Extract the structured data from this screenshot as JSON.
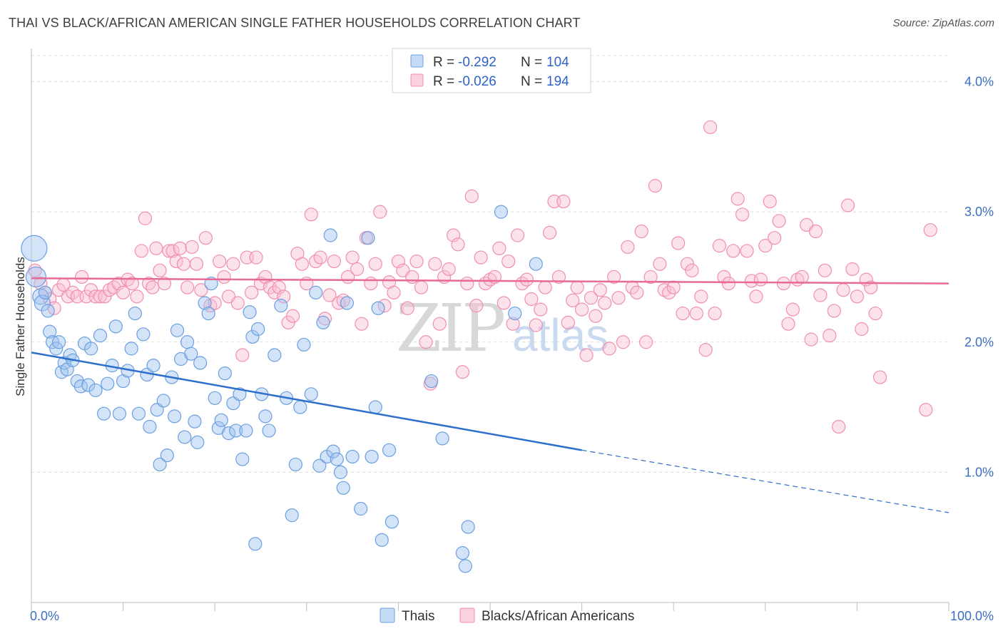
{
  "title": "THAI VS BLACK/AFRICAN AMERICAN SINGLE FATHER HOUSEHOLDS CORRELATION CHART",
  "source": "Source: ZipAtlas.com",
  "watermark": {
    "zip": "ZIP",
    "atlas": "atlas"
  },
  "colors": {
    "thai": "#6b9fe0",
    "thai_fill": "rgba(160,195,240,0.45)",
    "black": "#f08fb0",
    "black_fill": "rgba(248,190,210,0.45)",
    "thai_line": "#2e6fcd",
    "black_line": "#e86a96"
  },
  "legend": {
    "rows": [
      {
        "r_label": "R =",
        "r_value": "-0.292",
        "n_label": "N =",
        "n_value": "104"
      },
      {
        "r_label": "R =",
        "r_value": "-0.026",
        "n_label": "N =",
        "n_value": "194"
      }
    ]
  },
  "bottom_legend": [
    "Thais",
    "Blacks/African Americans"
  ],
  "chart_data": {
    "type": "scatter",
    "xlabel": "",
    "ylabel": "Single Father Households",
    "xlim": [
      0,
      100
    ],
    "ylim": [
      0,
      4.2
    ],
    "x_tick_labels": [
      "0.0%",
      "100.0%"
    ],
    "y_ticks": [
      1,
      2,
      3,
      4
    ],
    "y_tick_labels": [
      "1.0%",
      "2.0%",
      "3.0%",
      "4.0%"
    ],
    "grid": true,
    "series": [
      {
        "name": "Thais",
        "trend": {
          "x0": 0,
          "y0": 1.92,
          "x1": 60,
          "y1": 1.17,
          "dash_to_x": 100,
          "dash_to_y": 0.69
        },
        "points": [
          [
            0.3,
            2.72
          ],
          [
            0.5,
            2.5
          ],
          [
            1.0,
            2.35
          ],
          [
            1.2,
            2.3
          ],
          [
            1.5,
            2.38
          ],
          [
            1.8,
            2.24
          ],
          [
            2.0,
            2.08
          ],
          [
            2.3,
            2.0
          ],
          [
            2.7,
            1.95
          ],
          [
            3.0,
            2.0
          ],
          [
            3.3,
            1.77
          ],
          [
            3.6,
            1.84
          ],
          [
            3.9,
            1.79
          ],
          [
            4.2,
            1.9
          ],
          [
            4.5,
            1.86
          ],
          [
            5.0,
            1.7
          ],
          [
            5.4,
            1.66
          ],
          [
            5.8,
            1.99
          ],
          [
            6.2,
            1.67
          ],
          [
            6.5,
            1.95
          ],
          [
            7.0,
            1.63
          ],
          [
            7.5,
            2.05
          ],
          [
            7.9,
            1.45
          ],
          [
            8.3,
            1.68
          ],
          [
            8.8,
            1.82
          ],
          [
            9.2,
            2.12
          ],
          [
            9.6,
            1.45
          ],
          [
            10.0,
            1.7
          ],
          [
            10.5,
            1.78
          ],
          [
            10.9,
            1.95
          ],
          [
            11.3,
            2.22
          ],
          [
            11.7,
            1.45
          ],
          [
            12.2,
            2.06
          ],
          [
            12.6,
            1.75
          ],
          [
            12.9,
            1.35
          ],
          [
            13.3,
            1.82
          ],
          [
            13.7,
            1.48
          ],
          [
            14.0,
            1.06
          ],
          [
            14.4,
            1.55
          ],
          [
            14.8,
            1.13
          ],
          [
            15.3,
            1.73
          ],
          [
            15.6,
            1.43
          ],
          [
            15.9,
            2.09
          ],
          [
            16.3,
            1.87
          ],
          [
            16.7,
            1.27
          ],
          [
            17.0,
            2.0
          ],
          [
            17.4,
            1.91
          ],
          [
            17.8,
            1.39
          ],
          [
            18.1,
            1.23
          ],
          [
            18.4,
            1.84
          ],
          [
            18.9,
            2.3
          ],
          [
            19.3,
            2.22
          ],
          [
            19.6,
            2.45
          ],
          [
            20.0,
            1.57
          ],
          [
            20.4,
            1.34
          ],
          [
            20.7,
            1.4
          ],
          [
            21.1,
            1.76
          ],
          [
            21.5,
            1.3
          ],
          [
            22.0,
            1.53
          ],
          [
            22.3,
            1.32
          ],
          [
            22.7,
            1.6
          ],
          [
            23.0,
            1.1
          ],
          [
            23.4,
            1.32
          ],
          [
            23.8,
            2.23
          ],
          [
            24.1,
            2.04
          ],
          [
            24.4,
            0.45
          ],
          [
            24.7,
            2.1
          ],
          [
            25.1,
            1.6
          ],
          [
            25.5,
            1.43
          ],
          [
            25.9,
            1.32
          ],
          [
            26.5,
            1.9
          ],
          [
            27.2,
            2.28
          ],
          [
            27.8,
            1.57
          ],
          [
            28.4,
            0.67
          ],
          [
            28.8,
            1.06
          ],
          [
            29.3,
            1.5
          ],
          [
            29.7,
            1.98
          ],
          [
            30.5,
            1.6
          ],
          [
            31.0,
            2.38
          ],
          [
            31.4,
            1.05
          ],
          [
            31.8,
            2.15
          ],
          [
            32.2,
            1.12
          ],
          [
            32.6,
            2.82
          ],
          [
            32.9,
            1.16
          ],
          [
            33.3,
            1.1
          ],
          [
            33.7,
            1.0
          ],
          [
            34.0,
            0.88
          ],
          [
            34.4,
            2.3
          ],
          [
            35.0,
            1.12
          ],
          [
            35.9,
            0.72
          ],
          [
            36.7,
            2.8
          ],
          [
            37.1,
            1.12
          ],
          [
            37.5,
            1.5
          ],
          [
            37.8,
            2.26
          ],
          [
            38.2,
            0.48
          ],
          [
            39.0,
            1.17
          ],
          [
            39.3,
            0.62
          ],
          [
            43.6,
            1.7
          ],
          [
            44.8,
            1.26
          ],
          [
            47.0,
            0.38
          ],
          [
            47.3,
            0.28
          ],
          [
            47.6,
            0.58
          ],
          [
            51.2,
            3.0
          ],
          [
            52.7,
            2.22
          ],
          [
            55.0,
            2.6
          ]
        ]
      },
      {
        "name": "Blacks/African Americans",
        "trend": {
          "x0": 0,
          "y0": 2.49,
          "x1": 100,
          "y1": 2.45
        },
        "points": [
          [
            0.4,
            2.55
          ],
          [
            1.0,
            2.45
          ],
          [
            1.5,
            2.38
          ],
          [
            2.0,
            2.33
          ],
          [
            2.5,
            2.26
          ],
          [
            3.0,
            2.4
          ],
          [
            3.5,
            2.44
          ],
          [
            4.0,
            2.35
          ],
          [
            4.5,
            2.38
          ],
          [
            5.0,
            2.35
          ],
          [
            5.5,
            2.5
          ],
          [
            6.0,
            2.35
          ],
          [
            6.5,
            2.4
          ],
          [
            7.0,
            2.35
          ],
          [
            7.5,
            2.35
          ],
          [
            8.0,
            2.35
          ],
          [
            8.5,
            2.4
          ],
          [
            9.0,
            2.42
          ],
          [
            9.5,
            2.45
          ],
          [
            10.0,
            2.38
          ],
          [
            10.5,
            2.48
          ],
          [
            11.0,
            2.45
          ],
          [
            11.5,
            2.35
          ],
          [
            12.0,
            2.7
          ],
          [
            12.4,
            2.95
          ],
          [
            12.8,
            2.45
          ],
          [
            13.2,
            2.42
          ],
          [
            13.6,
            2.72
          ],
          [
            14.0,
            2.55
          ],
          [
            14.5,
            2.45
          ],
          [
            15.0,
            2.7
          ],
          [
            15.4,
            2.7
          ],
          [
            15.8,
            2.62
          ],
          [
            16.2,
            2.72
          ],
          [
            16.6,
            2.6
          ],
          [
            17.0,
            2.42
          ],
          [
            17.5,
            2.73
          ],
          [
            18.0,
            2.6
          ],
          [
            18.5,
            2.4
          ],
          [
            19.0,
            2.8
          ],
          [
            19.5,
            2.28
          ],
          [
            20.0,
            2.3
          ],
          [
            20.5,
            2.62
          ],
          [
            21.0,
            2.5
          ],
          [
            21.5,
            2.35
          ],
          [
            22.0,
            2.6
          ],
          [
            22.5,
            2.3
          ],
          [
            23.0,
            1.9
          ],
          [
            23.5,
            2.65
          ],
          [
            24.0,
            2.38
          ],
          [
            24.5,
            2.65
          ],
          [
            25.0,
            2.45
          ],
          [
            25.5,
            2.5
          ],
          [
            26.0,
            2.42
          ],
          [
            26.5,
            2.38
          ],
          [
            27.0,
            2.42
          ],
          [
            27.5,
            2.35
          ],
          [
            28.0,
            2.15
          ],
          [
            28.5,
            2.2
          ],
          [
            29.0,
            2.68
          ],
          [
            29.5,
            2.6
          ],
          [
            30.0,
            2.45
          ],
          [
            30.5,
            2.98
          ],
          [
            31.0,
            2.62
          ],
          [
            31.5,
            2.65
          ],
          [
            32.0,
            2.18
          ],
          [
            32.5,
            2.36
          ],
          [
            33.0,
            2.62
          ],
          [
            33.5,
            2.3
          ],
          [
            34.0,
            2.32
          ],
          [
            34.5,
            2.5
          ],
          [
            35.0,
            2.65
          ],
          [
            35.5,
            2.56
          ],
          [
            36.0,
            2.14
          ],
          [
            36.5,
            2.8
          ],
          [
            37.0,
            2.45
          ],
          [
            37.5,
            2.6
          ],
          [
            38.0,
            3.0
          ],
          [
            38.5,
            2.28
          ],
          [
            39.0,
            2.46
          ],
          [
            39.5,
            2.38
          ],
          [
            40.0,
            2.62
          ],
          [
            40.5,
            2.55
          ],
          [
            41.0,
            2.26
          ],
          [
            41.5,
            2.5
          ],
          [
            42.0,
            2.62
          ],
          [
            42.5,
            2.42
          ],
          [
            43.0,
            2.0
          ],
          [
            43.5,
            1.68
          ],
          [
            44.0,
            2.6
          ],
          [
            44.5,
            2.14
          ],
          [
            45.0,
            2.5
          ],
          [
            45.5,
            2.56
          ],
          [
            46.0,
            2.82
          ],
          [
            46.5,
            2.75
          ],
          [
            47.0,
            1.77
          ],
          [
            47.5,
            2.45
          ],
          [
            48.0,
            3.12
          ],
          [
            48.5,
            2.28
          ],
          [
            49.0,
            2.65
          ],
          [
            49.5,
            2.45
          ],
          [
            50.0,
            2.48
          ],
          [
            50.5,
            2.5
          ],
          [
            51.0,
            2.72
          ],
          [
            51.5,
            2.3
          ],
          [
            52.0,
            2.62
          ],
          [
            52.5,
            2.14
          ],
          [
            53.0,
            2.82
          ],
          [
            53.5,
            2.45
          ],
          [
            54.0,
            2.48
          ],
          [
            54.5,
            2.33
          ],
          [
            55.0,
            2.13
          ],
          [
            55.5,
            2.25
          ],
          [
            56.0,
            2.42
          ],
          [
            56.5,
            2.84
          ],
          [
            57.0,
            3.08
          ],
          [
            57.5,
            2.5
          ],
          [
            58.0,
            3.08
          ],
          [
            58.5,
            2.15
          ],
          [
            59.0,
            2.32
          ],
          [
            59.5,
            2.42
          ],
          [
            60.0,
            2.25
          ],
          [
            60.5,
            1.9
          ],
          [
            61.0,
            2.34
          ],
          [
            61.5,
            2.2
          ],
          [
            62.0,
            2.4
          ],
          [
            62.5,
            2.3
          ],
          [
            63.0,
            1.95
          ],
          [
            63.5,
            2.5
          ],
          [
            64.0,
            2.34
          ],
          [
            64.5,
            2.0
          ],
          [
            65.0,
            2.73
          ],
          [
            65.5,
            2.42
          ],
          [
            66.0,
            2.38
          ],
          [
            66.5,
            2.85
          ],
          [
            67.0,
            2.0
          ],
          [
            67.5,
            2.5
          ],
          [
            68.0,
            3.2
          ],
          [
            68.5,
            2.6
          ],
          [
            69.0,
            2.4
          ],
          [
            69.5,
            2.38
          ],
          [
            70.0,
            2.42
          ],
          [
            70.5,
            2.76
          ],
          [
            71.0,
            2.22
          ],
          [
            71.5,
            2.6
          ],
          [
            72.0,
            2.55
          ],
          [
            72.5,
            2.22
          ],
          [
            73.0,
            2.35
          ],
          [
            73.5,
            1.94
          ],
          [
            74.0,
            3.65
          ],
          [
            74.5,
            2.22
          ],
          [
            75.0,
            2.74
          ],
          [
            75.5,
            2.5
          ],
          [
            76.0,
            2.45
          ],
          [
            76.5,
            2.7
          ],
          [
            77.0,
            3.1
          ],
          [
            77.5,
            2.98
          ],
          [
            78.0,
            2.7
          ],
          [
            78.5,
            2.47
          ],
          [
            79.0,
            2.35
          ],
          [
            79.5,
            2.48
          ],
          [
            80.0,
            2.74
          ],
          [
            80.5,
            3.08
          ],
          [
            81.0,
            2.8
          ],
          [
            81.5,
            2.93
          ],
          [
            82.0,
            2.45
          ],
          [
            82.5,
            2.14
          ],
          [
            83.0,
            2.25
          ],
          [
            83.5,
            2.48
          ],
          [
            84.0,
            2.5
          ],
          [
            84.5,
            2.9
          ],
          [
            85.0,
            2.02
          ],
          [
            85.5,
            2.85
          ],
          [
            86.0,
            2.36
          ],
          [
            86.5,
            2.55
          ],
          [
            87.0,
            2.05
          ],
          [
            87.5,
            2.24
          ],
          [
            88.0,
            1.35
          ],
          [
            88.5,
            2.4
          ],
          [
            89.0,
            3.05
          ],
          [
            89.5,
            2.56
          ],
          [
            90.0,
            2.35
          ],
          [
            90.5,
            2.1
          ],
          [
            91.0,
            2.48
          ],
          [
            91.5,
            2.42
          ],
          [
            92.0,
            2.22
          ],
          [
            92.5,
            1.73
          ],
          [
            97.5,
            1.48
          ],
          [
            98.0,
            2.86
          ]
        ]
      }
    ]
  }
}
